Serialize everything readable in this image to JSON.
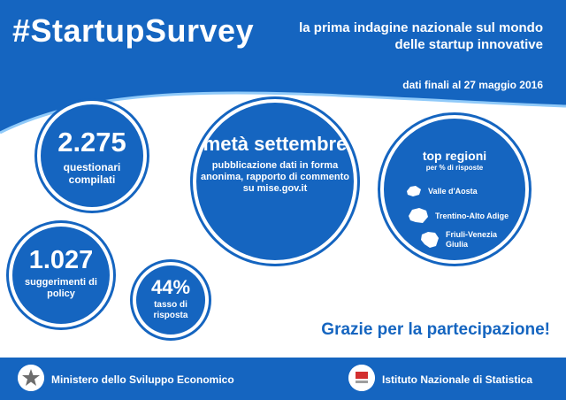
{
  "header": {
    "hashtag": "#StartupSurvey",
    "headline": "la prima indagine nazionale sul mondo delle startup innovative",
    "date_note": "dati finali al 27 maggio 2016"
  },
  "stats": {
    "questionari": {
      "value": "2.275",
      "label": "questionari compilati"
    },
    "suggerimenti": {
      "value": "1.027",
      "label": "suggerimenti di policy"
    },
    "tasso": {
      "value": "44%",
      "label": "tasso di risposta"
    },
    "pubblicazione": {
      "value": "metà settembre",
      "label": "pubblicazione dati in forma anonima, rapporto di commento su mise.gov.it"
    }
  },
  "regioni": {
    "title": "top regioni",
    "subtitle": "per % di risposte",
    "items": [
      "Valle d'Aosta",
      "Trentino-Alto Adige",
      "Friuli-Venezia Giulia"
    ]
  },
  "thanks": "Grazie per la partecipazione!",
  "footer": {
    "ministero": "Ministero dello Sviluppo Economico",
    "istat": "Istituto Nazionale di Statistica"
  },
  "colors": {
    "primary": "#1565c0",
    "background": "#ffffff"
  }
}
